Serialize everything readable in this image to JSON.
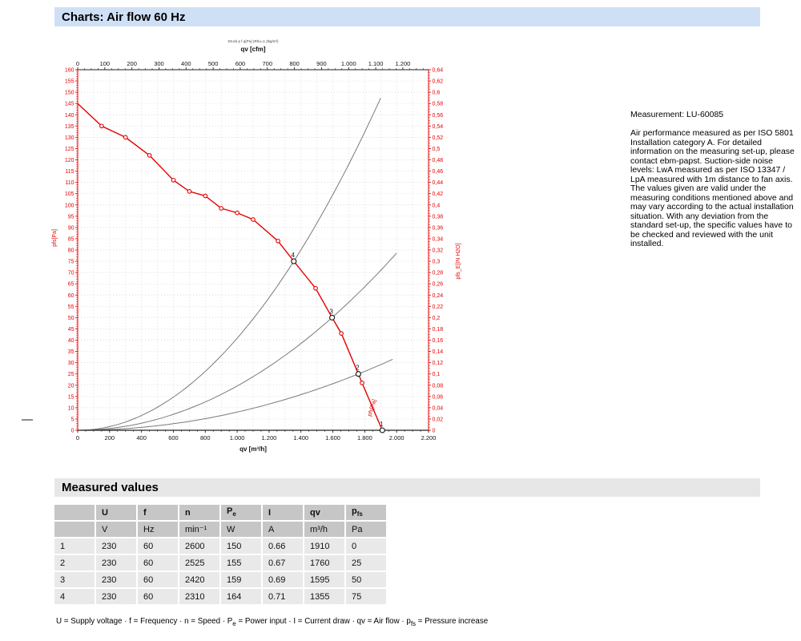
{
  "header": {
    "title": "Charts: Air flow 60 Hz"
  },
  "side_panel": {
    "measurement": "Measurement: LU-60085",
    "notes": "Air performance measured as per ISO 5801 Installation category A. For detailed information on the measuring set-up, please contact ebm-papst. Suction-side noise levels: LwA measured as per ISO 13347 / LpA measured with 1m distance to fan axis. The values given are valid under the measuring conditions mentioned above and may vary according to the actual installation situation. With any deviation from the standard set-up, the specific values have to be checked and reviewed with the unit installed."
  },
  "chart_data": {
    "type": "line",
    "title_note": "Druck p f q(Pa) (Rho=1.2kg/m³)",
    "cfm_to_m3h": 1.699,
    "axes": {
      "top": {
        "label": "qv [cfm]",
        "min": 0,
        "max": 1295,
        "major_step": 100,
        "minor_step": 25,
        "tick_labels": [
          "0",
          "100",
          "200",
          "300",
          "400",
          "500",
          "600",
          "700",
          "800",
          "900",
          "1.000",
          "1.100",
          "1.200"
        ]
      },
      "bottom": {
        "label": "qv [m³/h]",
        "min": 0,
        "max": 2200,
        "major_step": 200,
        "minor_step": 50,
        "tick_labels": [
          "0",
          "200",
          "400",
          "600",
          "800",
          "1.000",
          "1.200",
          "1.400",
          "1.600",
          "1.800",
          "2.000",
          "2.200"
        ]
      },
      "left": {
        "label": "pfs[Pa]",
        "min": 0,
        "max": 160,
        "major_step": 5,
        "minor_step": 1,
        "tick_labels": [
          "0",
          "5",
          "10",
          "15",
          "20",
          "25",
          "30",
          "35",
          "40",
          "45",
          "50",
          "55",
          "60",
          "65",
          "70",
          "75",
          "80",
          "85",
          "90",
          "95",
          "100",
          "105",
          "110",
          "115",
          "120",
          "125",
          "130",
          "135",
          "140",
          "145",
          "150",
          "155",
          "160"
        ]
      },
      "right": {
        "label": "pfs_E[IN H2O]",
        "min": 0,
        "max": 0.64,
        "major_step": 0.02,
        "minor_step": 0.005,
        "tick_labels": [
          "0",
          "0,02",
          "0,04",
          "0,06",
          "0,08",
          "0,1",
          "0,12",
          "0,14",
          "0,16",
          "0,18",
          "0,2",
          "0,22",
          "0,24",
          "0,26",
          "0,28",
          "0,3",
          "0,32",
          "0,34",
          "0,36",
          "0,38",
          "0,4",
          "0,42",
          "0,44",
          "0,46",
          "0,48",
          "0,5",
          "0,52",
          "0,54",
          "0,56",
          "0,58",
          "0,6",
          "0,62",
          "0,64"
        ]
      }
    },
    "grid": {
      "on": true,
      "x_step_m3h": 100,
      "y_step_pa": 5
    },
    "fan_curve": {
      "curve_label": "pfs[Pa]",
      "points": [
        [
          0,
          145
        ],
        [
          150,
          135
        ],
        [
          300,
          130
        ],
        [
          450,
          122
        ],
        [
          600,
          111
        ],
        [
          700,
          106
        ],
        [
          800,
          104
        ],
        [
          900,
          98.5
        ],
        [
          1000,
          96.5
        ],
        [
          1100,
          93.5
        ],
        [
          1256,
          84
        ],
        [
          1355,
          75
        ],
        [
          1492,
          63
        ],
        [
          1595,
          50
        ],
        [
          1653,
          43
        ],
        [
          1760,
          25
        ],
        [
          1783,
          21
        ],
        [
          1910,
          0
        ]
      ],
      "marker_points": [
        [
          150,
          135
        ],
        [
          300,
          130
        ],
        [
          450,
          122
        ],
        [
          600,
          111
        ],
        [
          700,
          106
        ],
        [
          800,
          104
        ],
        [
          900,
          98.5
        ],
        [
          1000,
          96.5
        ],
        [
          1100,
          93.5
        ],
        [
          1256,
          84
        ],
        [
          1492,
          63
        ],
        [
          1653,
          43
        ],
        [
          1783,
          21
        ]
      ]
    },
    "system_curves": {
      "curves": [
        {
          "p_ref": 75,
          "q_ref": 1355,
          "q_end": 1900
        },
        {
          "p_ref": 50,
          "q_ref": 1595,
          "q_end": 2005
        },
        {
          "p_ref": 25,
          "q_ref": 1760,
          "q_end": 1985
        }
      ]
    },
    "operating_points": [
      {
        "n": "1",
        "qv": 1910,
        "pfs": 0
      },
      {
        "n": "2",
        "qv": 1760,
        "pfs": 25
      },
      {
        "n": "3",
        "qv": 1595,
        "pfs": 50
      },
      {
        "n": "4",
        "qv": 1355,
        "pfs": 75
      }
    ]
  },
  "measured_values": {
    "heading": "Measured values",
    "columns": [
      {
        "t": ""
      },
      {
        "t": "U"
      },
      {
        "t": "f"
      },
      {
        "t": "n"
      },
      {
        "t": "P",
        "sub": "e"
      },
      {
        "t": "I"
      },
      {
        "t": "qv"
      },
      {
        "t": "p",
        "sub": "fs"
      }
    ],
    "units": [
      "",
      "V",
      "Hz",
      "min⁻¹",
      "W",
      "A",
      "m³/h",
      "Pa"
    ],
    "rows": [
      [
        "1",
        "230",
        "60",
        "2600",
        "150",
        "0.66",
        "1910",
        "0"
      ],
      [
        "2",
        "230",
        "60",
        "2525",
        "155",
        "0.67",
        "1760",
        "25"
      ],
      [
        "3",
        "230",
        "60",
        "2420",
        "159",
        "0.69",
        "1595",
        "50"
      ],
      [
        "4",
        "230",
        "60",
        "2310",
        "164",
        "0.71",
        "1355",
        "75"
      ]
    ],
    "footnote_parts": [
      {
        "t": "U = Supply voltage · f = Frequency · n = Speed · P"
      },
      {
        "sub": "e"
      },
      {
        "t": " = Power input · I = Current draw · qv = Air flow · p"
      },
      {
        "sub": "fs"
      },
      {
        "t": " = Pressure increase"
      }
    ]
  },
  "colors": {
    "accent_red": "#e60000",
    "system_curve_gray": "#7a7a7a",
    "axis_black": "#222222",
    "grid_gray": "#cccccc",
    "title_bar_blue": "#cfe0f6",
    "band_gray": "#e7e7e7",
    "table_header_gray": "#c6c6c6",
    "table_row_gray": "#e9e9e9"
  }
}
